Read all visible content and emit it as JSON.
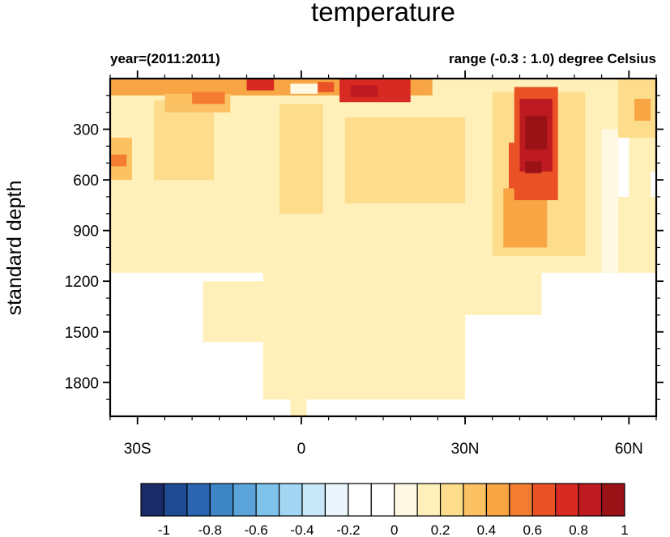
{
  "chart_data": {
    "type": "heatmap",
    "title": "temperature",
    "subtitle_left": "year=(2011:2011)",
    "subtitle_right": "range (-0.3 : 1.0) degree Celsius",
    "ylabel": "standard depth",
    "xlabel": "",
    "x_range_deg": [
      -35,
      65
    ],
    "y_range": [
      0,
      2000
    ],
    "y_reversed": true,
    "x_ticks": [
      {
        "value": -30,
        "label": "30S"
      },
      {
        "value": 0,
        "label": "0"
      },
      {
        "value": 30,
        "label": "30N"
      },
      {
        "value": 60,
        "label": "60N"
      }
    ],
    "y_ticks": [
      300,
      600,
      900,
      1200,
      1500,
      1800
    ],
    "colorbar": {
      "tick_labels": [
        "-1",
        "-0.8",
        "-0.6",
        "-0.4",
        "-0.2",
        "0",
        "0.2",
        "0.4",
        "0.6",
        "0.8",
        "1"
      ],
      "colors": [
        "#1b2a68",
        "#1f4a94",
        "#2b65b2",
        "#3e85c6",
        "#5aa4da",
        "#7ec2ea",
        "#a2d6f2",
        "#c8e8f8",
        "#eaf6fc",
        "#ffffff",
        "#ffffff",
        "#fff9e3",
        "#fff0ba",
        "#fddc8c",
        "#fbc163",
        "#f8a543",
        "#f47d31",
        "#ea5226",
        "#d82a22",
        "#bd1a21",
        "#9a1216"
      ]
    },
    "regions": [
      {
        "lat": [
          -35,
          65
        ],
        "depth": [
          0,
          1150
        ],
        "value": 0.1
      },
      {
        "lat": [
          -7,
          30
        ],
        "depth": [
          1150,
          1900
        ],
        "value": 0.1
      },
      {
        "lat": [
          -18,
          -7
        ],
        "depth": [
          1200,
          1560
        ],
        "value": 0.1
      },
      {
        "lat": [
          30,
          44
        ],
        "depth": [
          1150,
          1400
        ],
        "value": 0.1
      },
      {
        "lat": [
          -2,
          1
        ],
        "depth": [
          1900,
          2000
        ],
        "value": 0.1
      },
      {
        "lat": [
          -27,
          -16
        ],
        "depth": [
          130,
          600
        ],
        "value": 0.2
      },
      {
        "lat": [
          -4,
          4
        ],
        "depth": [
          150,
          800
        ],
        "value": 0.2
      },
      {
        "lat": [
          8,
          30
        ],
        "depth": [
          230,
          740
        ],
        "value": 0.2
      },
      {
        "lat": [
          35,
          52
        ],
        "depth": [
          80,
          1050
        ],
        "value": 0.2
      },
      {
        "lat": [
          58,
          65
        ],
        "depth": [
          0,
          350
        ],
        "value": 0.2
      },
      {
        "lat": [
          -35,
          -31
        ],
        "depth": [
          350,
          600
        ],
        "value": 0.3
      },
      {
        "lat": [
          -35,
          24
        ],
        "depth": [
          0,
          100
        ],
        "value": 0.4
      },
      {
        "lat": [
          -25,
          -13
        ],
        "depth": [
          90,
          200
        ],
        "value": 0.3
      },
      {
        "lat": [
          37,
          45
        ],
        "depth": [
          650,
          1000
        ],
        "value": 0.4
      },
      {
        "lat": [
          61,
          64
        ],
        "depth": [
          120,
          250
        ],
        "value": 0.4
      },
      {
        "lat": [
          -35,
          -32
        ],
        "depth": [
          450,
          520
        ],
        "value": 0.5
      },
      {
        "lat": [
          -20,
          -14
        ],
        "depth": [
          80,
          150
        ],
        "value": 0.5
      },
      {
        "lat": [
          39,
          47
        ],
        "depth": [
          50,
          720
        ],
        "value": 0.6
      },
      {
        "lat": [
          38,
          43
        ],
        "depth": [
          380,
          650
        ],
        "value": 0.6
      },
      {
        "lat": [
          -10,
          -5
        ],
        "depth": [
          0,
          70
        ],
        "value": 0.7
      },
      {
        "lat": [
          7,
          20
        ],
        "depth": [
          0,
          140
        ],
        "value": 0.7
      },
      {
        "lat": [
          3,
          6
        ],
        "depth": [
          20,
          80
        ],
        "value": 0.6
      },
      {
        "lat": [
          40,
          46
        ],
        "depth": [
          120,
          550
        ],
        "value": 0.8
      },
      {
        "lat": [
          9,
          14
        ],
        "depth": [
          40,
          110
        ],
        "value": 0.8
      },
      {
        "lat": [
          41,
          45
        ],
        "depth": [
          220,
          420
        ],
        "value": 0.9
      },
      {
        "lat": [
          41,
          44
        ],
        "depth": [
          490,
          560
        ],
        "value": 0.9
      },
      {
        "lat": [
          -2,
          3
        ],
        "depth": [
          30,
          90
        ],
        "value": 0.0
      },
      {
        "lat": [
          55,
          58
        ],
        "depth": [
          300,
          1150
        ],
        "value": 0.0
      },
      {
        "lat": [
          58,
          60
        ],
        "depth": [
          350,
          700
        ],
        "value": -0.1
      },
      {
        "lat": [
          64,
          65
        ],
        "depth": [
          550,
          700
        ],
        "value": -0.1
      }
    ]
  }
}
